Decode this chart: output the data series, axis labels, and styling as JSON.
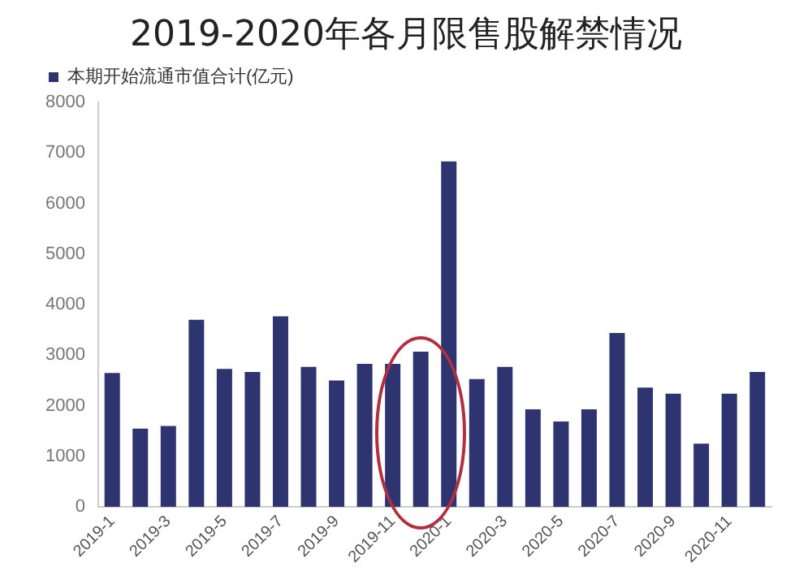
{
  "chart_data": {
    "type": "bar",
    "title": "2019-2020年各月限售股解禁情况",
    "categories": [
      "2019-1",
      null,
      "2019-3",
      null,
      "2019-5",
      null,
      "2019-7",
      null,
      "2019-9",
      null,
      "2019-11",
      null,
      "2020-1",
      null,
      "2020-3",
      null,
      "2020-5",
      null,
      "2020-7",
      null,
      "2020-9",
      null,
      "2020-11",
      null
    ],
    "series": [
      {
        "name": "本期开始流通市值合计(亿元)",
        "color": "#2e3470",
        "values": [
          2650,
          1550,
          1600,
          3700,
          2730,
          2670,
          3770,
          2770,
          2500,
          2830,
          2830,
          3070,
          6830,
          2530,
          2770,
          1930,
          1690,
          1930,
          3440,
          2360,
          2240,
          1250,
          2240,
          2670
        ]
      }
    ],
    "ylim": [
      0,
      8000
    ],
    "yticks": [
      0,
      1000,
      2000,
      3000,
      4000,
      5000,
      6000,
      7000,
      8000
    ],
    "grid": false,
    "legend": "top left"
  }
}
